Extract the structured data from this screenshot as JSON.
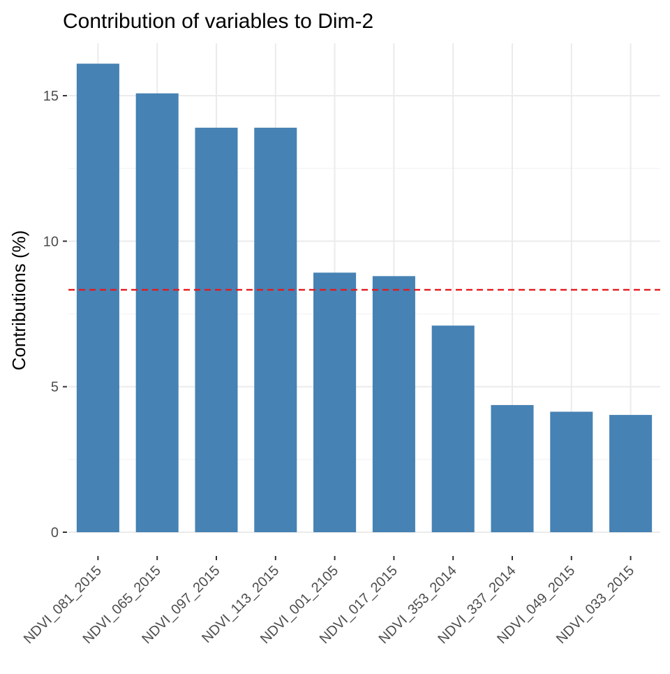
{
  "chart_data": {
    "type": "bar",
    "title": "Contribution of variables to Dim-2",
    "xlabel": "",
    "ylabel": "Contributions (%)",
    "categories": [
      "NDVI_081_2015",
      "NDVI_065_2015",
      "NDVI_097_2015",
      "NDVI_113_2015",
      "NDVI_001_2105",
      "NDVI_017_2015",
      "NDVI_353_2014",
      "NDVI_337_2014",
      "NDVI_049_2015",
      "NDVI_033_2015"
    ],
    "values": [
      16.1,
      15.08,
      13.9,
      13.9,
      8.92,
      8.8,
      7.1,
      4.37,
      4.14,
      4.03
    ],
    "ylim": [
      0,
      16.8
    ],
    "yticks": [
      0,
      5,
      10,
      15
    ],
    "reference_line": {
      "value": 8.33,
      "color": "#e41a1c",
      "style": "dashed"
    },
    "bar_color": "#4682b4",
    "grid": true
  }
}
